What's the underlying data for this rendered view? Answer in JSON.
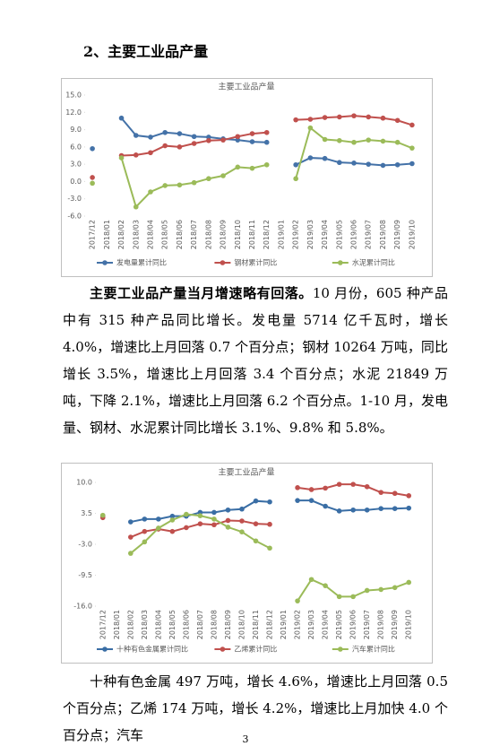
{
  "heading": "2、主要工业品产量",
  "chart_data": [
    {
      "type": "line",
      "title": "主要工业品产量",
      "categories": [
        "2017/12",
        "2018/01",
        "2018/02",
        "2018/03",
        "2018/04",
        "2018/05",
        "2018/06",
        "2018/07",
        "2018/08",
        "2018/09",
        "2018/10",
        "2018/11",
        "2018/12",
        "2019/01",
        "2019/02",
        "2019/03",
        "2019/04",
        "2019/05",
        "2019/06",
        "2019/07",
        "2019/08",
        "2019/09",
        "2019/10"
      ],
      "series": [
        {
          "name": "发电量累计同比",
          "color": "#4472a8",
          "values": [
            5.7,
            null,
            11.0,
            8.0,
            7.7,
            8.5,
            8.3,
            7.8,
            7.7,
            7.4,
            7.2,
            6.9,
            6.8,
            null,
            2.9,
            4.1,
            4.0,
            3.3,
            3.2,
            3.0,
            2.8,
            2.9,
            3.1
          ]
        },
        {
          "name": "钢材累计同比",
          "color": "#c0504d",
          "values": [
            0.7,
            null,
            4.5,
            4.6,
            5.0,
            6.2,
            6.0,
            6.6,
            7.1,
            7.2,
            7.8,
            8.3,
            8.5,
            null,
            10.7,
            10.8,
            11.1,
            11.2,
            11.4,
            11.2,
            11.0,
            10.6,
            9.8
          ]
        },
        {
          "name": "水泥累计同比",
          "color": "#9bbb59",
          "values": [
            -0.3,
            null,
            4.1,
            -4.4,
            -1.8,
            -0.7,
            -0.6,
            -0.2,
            0.5,
            1.0,
            2.5,
            2.3,
            2.9,
            null,
            0.5,
            9.3,
            7.3,
            7.1,
            6.8,
            7.2,
            7.0,
            6.8,
            5.8
          ]
        }
      ],
      "ylim": [
        -6,
        15
      ],
      "yticks": [
        {
          "value": -6,
          "label": "-6.0"
        },
        {
          "value": -3,
          "label": "-3.0"
        },
        {
          "value": 0,
          "label": "0.0"
        },
        {
          "value": 3,
          "label": "3.0"
        },
        {
          "value": 6,
          "label": "6.0"
        },
        {
          "value": 9,
          "label": "9.0"
        },
        {
          "value": 12,
          "label": "12.0"
        },
        {
          "value": 15,
          "label": "15.0"
        }
      ],
      "grid": false,
      "legend": "bottom"
    },
    {
      "type": "line",
      "title": "主要工业品产量",
      "categories": [
        "2017/12",
        "2018/01",
        "2018/02",
        "2018/03",
        "2018/04",
        "2018/05",
        "2018/06",
        "2018/07",
        "2018/08",
        "2018/09",
        "2018/10",
        "2018/11",
        "2018/12",
        "2019/01",
        "2019/02",
        "2019/03",
        "2019/04",
        "2019/05",
        "2019/06",
        "2019/07",
        "2019/08",
        "2019/09",
        "2019/10"
      ],
      "series": [
        {
          "name": "十种有色金属累计同比",
          "color": "#3a6ea5",
          "values": [
            3.0,
            null,
            1.7,
            2.3,
            2.3,
            2.9,
            2.9,
            3.7,
            3.7,
            4.2,
            4.4,
            6.1,
            5.9,
            null,
            6.2,
            6.2,
            5.0,
            4.0,
            4.2,
            4.2,
            4.5,
            4.5,
            4.6
          ]
        },
        {
          "name": "乙烯累计同比",
          "color": "#c0504d",
          "values": [
            2.6,
            null,
            -1.5,
            -0.3,
            0.2,
            -0.3,
            0.5,
            1.3,
            1.1,
            2.0,
            1.9,
            1.3,
            1.2,
            null,
            8.9,
            8.5,
            8.8,
            9.6,
            9.6,
            9.1,
            7.9,
            7.7,
            7.2
          ]
        },
        {
          "name": "汽车累计同比",
          "color": "#9bbb59",
          "values": [
            3.1,
            null,
            -4.9,
            -2.5,
            0.4,
            2.1,
            3.3,
            3.0,
            2.3,
            0.6,
            -0.4,
            -2.3,
            -3.8,
            null,
            -14.9,
            -10.4,
            -11.7,
            -14.0,
            -14.0,
            -12.7,
            -12.5,
            -12.1,
            -11.0
          ]
        }
      ],
      "ylim": [
        -16,
        10
      ],
      "yticks": [
        {
          "value": -16,
          "label": "-16.0"
        },
        {
          "value": -9.5,
          "label": "-9.5"
        },
        {
          "value": -3,
          "label": "-3.0"
        },
        {
          "value": 3.5,
          "label": "3.5"
        },
        {
          "value": 10,
          "label": "10.0"
        }
      ],
      "grid": false,
      "legend": "bottom"
    }
  ],
  "paragraphs": [
    {
      "lead": "主要工业品产量当月增速略有回落。",
      "text": "10 月份，605 种产品中有 315 种产品同比增长。发电量 5714 亿千瓦时，增长 4.0%，增速比上月回落 0.7 个百分点；钢材 10264 万吨，同比增长 3.5%，增速比上月回落 3.4 个百分点；水泥 21849 万吨，下降 2.1%，增速比上月回落 6.2 个百分点。1-10 月，发电量、钢材、水泥累计同比增长 3.1%、9.8% 和 5.8%。"
    },
    {
      "text": "十种有色金属 497 万吨，增长 4.6%，增速比上月回落 0.5 个百分点；乙烯 174 万吨，增长 4.2%，增速比上月加快 4.0 个百分点；汽车"
    }
  ],
  "page_number": "3"
}
